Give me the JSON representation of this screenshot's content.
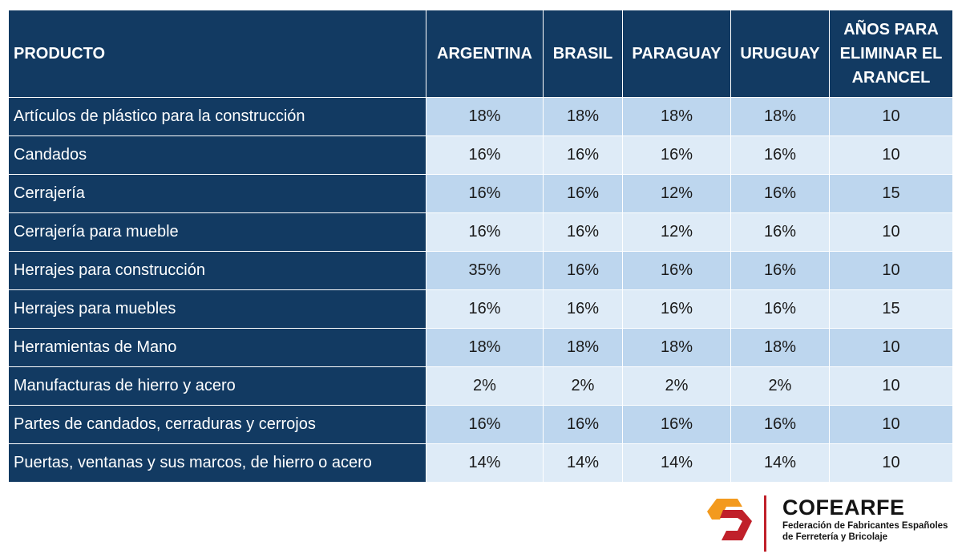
{
  "table": {
    "headers": {
      "product": "PRODUCTO",
      "argentina": "ARGENTINA",
      "brasil": "BRASIL",
      "paraguay": "PARAGUAY",
      "uruguay": "URUGUAY",
      "years": "AÑOS PARA\nELIMINAR EL\nARANCEL"
    },
    "rows": [
      {
        "product": "Artículos de plástico para la construcción",
        "argentina": "18%",
        "brasil": "18%",
        "paraguay": "18%",
        "uruguay": "18%",
        "years": "10"
      },
      {
        "product": "Candados",
        "argentina": "16%",
        "brasil": "16%",
        "paraguay": "16%",
        "uruguay": "16%",
        "years": "10"
      },
      {
        "product": "Cerrajería",
        "argentina": "16%",
        "brasil": "16%",
        "paraguay": "12%",
        "uruguay": "16%",
        "years": "15"
      },
      {
        "product": "Cerrajería para mueble",
        "argentina": "16%",
        "brasil": "16%",
        "paraguay": "12%",
        "uruguay": "16%",
        "years": "10"
      },
      {
        "product": "Herrajes para construcción",
        "argentina": "35%",
        "brasil": "16%",
        "paraguay": "16%",
        "uruguay": "16%",
        "years": "10"
      },
      {
        "product": "Herrajes para muebles",
        "argentina": "16%",
        "brasil": "16%",
        "paraguay": "16%",
        "uruguay": "16%",
        "years": "15"
      },
      {
        "product": "Herramientas de Mano",
        "argentina": "18%",
        "brasil": "18%",
        "paraguay": "18%",
        "uruguay": "18%",
        "years": "10"
      },
      {
        "product": "Manufacturas de hierro y acero",
        "argentina": "2%",
        "brasil": "2%",
        "paraguay": "2%",
        "uruguay": "2%",
        "years": "10"
      },
      {
        "product": "Partes de candados, cerraduras y cerrojos",
        "argentina": "16%",
        "brasil": "16%",
        "paraguay": "16%",
        "uruguay": "16%",
        "years": "10"
      },
      {
        "product": "Puertas, ventanas y sus marcos, de hierro o acero",
        "argentina": "14%",
        "brasil": "14%",
        "paraguay": "14%",
        "uruguay": "14%",
        "years": "10"
      }
    ]
  },
  "logo": {
    "name": "COFEARFE",
    "subtitle_line1": "Federación de Fabricantes Españoles",
    "subtitle_line2": "de Ferretería y Bricolaje",
    "icon": "cofearfe-logo-icon",
    "colors": {
      "orange": "#f39a1e",
      "red": "#c0202a",
      "divider": "#c0202a"
    }
  },
  "colors": {
    "header_bg": "#123a62",
    "row_odd_bg": "#bdd6ee",
    "row_even_bg": "#deebf7"
  }
}
